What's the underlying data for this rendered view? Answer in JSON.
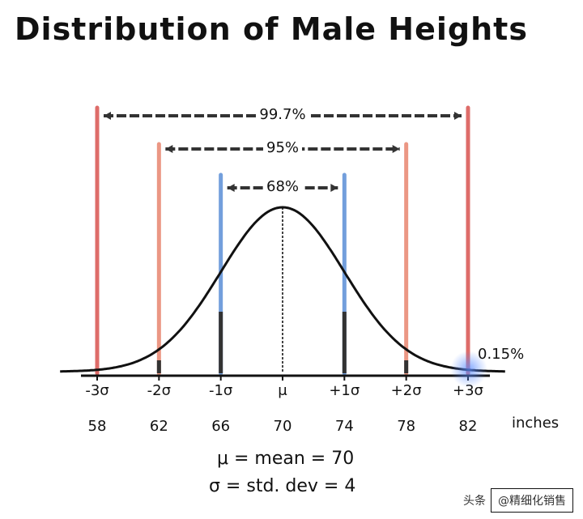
{
  "title": "Distribution of Male Heights",
  "brackets": [
    {
      "label": "99.7%"
    },
    {
      "label": "95%"
    },
    {
      "label": "68%"
    }
  ],
  "sigma_labels": [
    "-3σ",
    "-2σ",
    "-1σ",
    "μ",
    "+1σ",
    "+2σ",
    "+3σ"
  ],
  "values": [
    "58",
    "62",
    "66",
    "70",
    "74",
    "78",
    "82"
  ],
  "units": "inches",
  "tail_label": "0.15%",
  "formula_mean": "μ = mean = 70",
  "formula_std": "σ = std. dev = 4",
  "watermark": {
    "prefix": "头条",
    "handle": "@精细化销售"
  },
  "colors": {
    "three_sigma": "#d9534f",
    "two_sigma": "#e8866f",
    "one_sigma": "#5b8fd6",
    "mean": "#444444",
    "bracket": "#333333",
    "curve": "#111111",
    "glow": "#5a8cff"
  },
  "chart_data": {
    "type": "line",
    "distribution": "normal",
    "mean": 70,
    "std_dev": 4,
    "x_ticks": [
      58,
      62,
      66,
      70,
      74,
      78,
      82
    ],
    "intervals": [
      {
        "range": [
          66,
          74
        ],
        "percent": 68
      },
      {
        "range": [
          62,
          78
        ],
        "percent": 95
      },
      {
        "range": [
          58,
          82
        ],
        "percent": 99.7
      }
    ],
    "tail_percent": 0.15
  }
}
